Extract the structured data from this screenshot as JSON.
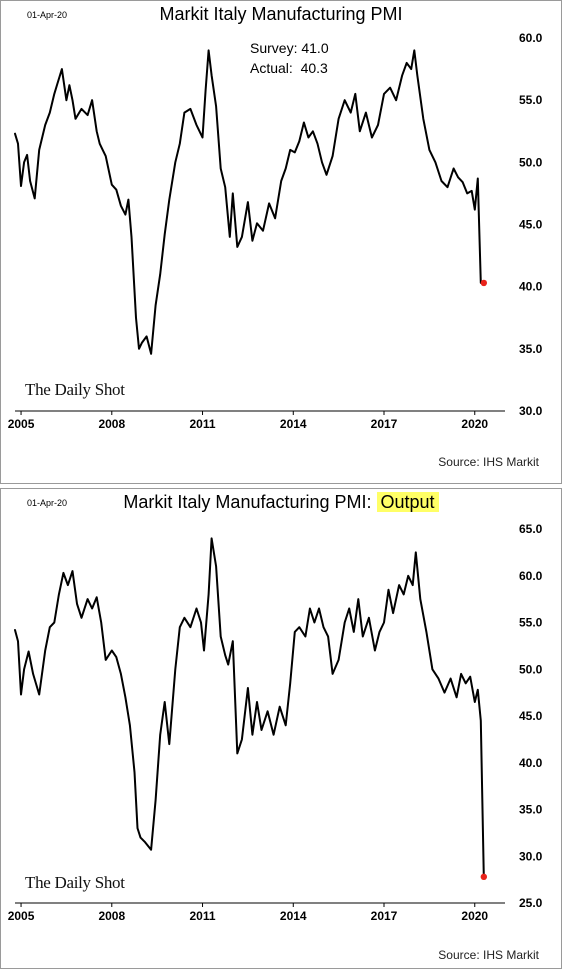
{
  "chart_data": [
    {
      "type": "line",
      "title": "Markit Italy Manufacturing PMI",
      "date_label": "01-Apr-20",
      "annotation": {
        "survey": "Survey: 41.0",
        "actual": "Actual:  40.3"
      },
      "source": "Source: IHS Markit",
      "watermark": "The Daily Shot",
      "ylim": [
        30,
        60
      ],
      "yticks": [
        "30.0",
        "35.0",
        "40.0",
        "45.0",
        "50.0",
        "55.0",
        "60.0"
      ],
      "xlim": [
        2004.8,
        2021.0
      ],
      "xticks": [
        "2005",
        "2008",
        "2011",
        "2014",
        "2017",
        "2020"
      ],
      "grid": false,
      "marker_color": "#e8231b",
      "line_color": "#000000",
      "series": [
        {
          "x": [
            2004.8,
            2004.9,
            2005.0,
            2005.1,
            2005.2,
            2005.3,
            2005.45,
            2005.6,
            2005.8,
            2005.95,
            2006.1,
            2006.2,
            2006.35,
            2006.5,
            2006.6,
            2006.7,
            2006.8,
            2007.0,
            2007.2,
            2007.35,
            2007.5,
            2007.6,
            2007.7,
            2007.8,
            2008.0,
            2008.15,
            2008.3,
            2008.45,
            2008.55,
            2008.65,
            2008.8,
            2008.9,
            2009.0,
            2009.15,
            2009.3,
            2009.45,
            2009.6,
            2009.75,
            2009.9,
            2010.1,
            2010.25,
            2010.4,
            2010.6,
            2010.8,
            2011.0,
            2011.1,
            2011.2,
            2011.3,
            2011.45,
            2011.6,
            2011.75,
            2011.9,
            2012.0,
            2012.15,
            2012.3,
            2012.5,
            2012.65,
            2012.8,
            2013.0,
            2013.2,
            2013.4,
            2013.6,
            2013.75,
            2013.9,
            2014.05,
            2014.2,
            2014.35,
            2014.5,
            2014.65,
            2014.8,
            2014.95,
            2015.1,
            2015.3,
            2015.5,
            2015.7,
            2015.9,
            2016.05,
            2016.2,
            2016.4,
            2016.6,
            2016.8,
            2017.0,
            2017.2,
            2017.4,
            2017.6,
            2017.75,
            2017.9,
            2018.0,
            2018.1,
            2018.3,
            2018.5,
            2018.7,
            2018.9,
            2019.1,
            2019.3,
            2019.45,
            2019.6,
            2019.75,
            2019.9,
            2020.0,
            2020.1,
            2020.2,
            2020.3
          ],
          "y": [
            52.3,
            51.5,
            48.1,
            50.0,
            50.6,
            48.5,
            47.1,
            51.0,
            53.0,
            54.0,
            55.5,
            56.3,
            57.5,
            55.0,
            56.2,
            55.0,
            53.5,
            54.3,
            53.8,
            55.0,
            52.5,
            51.5,
            51.0,
            50.5,
            48.2,
            47.8,
            46.5,
            45.8,
            47.0,
            44.0,
            37.5,
            35.0,
            35.5,
            36.0,
            34.6,
            38.5,
            41.0,
            44.2,
            47.0,
            50.0,
            51.5,
            54.0,
            54.3,
            53.0,
            52.0,
            55.8,
            59.0,
            57.0,
            54.5,
            49.5,
            48.0,
            44.0,
            47.5,
            43.2,
            44.0,
            46.8,
            43.7,
            45.1,
            44.5,
            46.7,
            45.5,
            48.5,
            49.5,
            51.0,
            50.8,
            51.7,
            53.2,
            52.0,
            52.5,
            51.5,
            50.0,
            49.0,
            50.5,
            53.5,
            55.0,
            54.0,
            55.5,
            52.5,
            54.0,
            52.0,
            53.0,
            55.5,
            56.0,
            55.0,
            57.0,
            58.0,
            57.5,
            59.0,
            57.0,
            53.5,
            51.0,
            50.0,
            48.5,
            48.0,
            49.5,
            48.8,
            48.4,
            47.5,
            47.7,
            46.2,
            48.7,
            40.3,
            40.3
          ]
        }
      ]
    },
    {
      "type": "line",
      "title": "Markit Italy Manufacturing PMI: ",
      "title_highlight": "Output",
      "date_label": "01-Apr-20",
      "source": "Source: IHS Markit",
      "watermark": "The Daily Shot",
      "ylim": [
        25,
        65
      ],
      "yticks": [
        "25.0",
        "30.0",
        "35.0",
        "40.0",
        "45.0",
        "50.0",
        "55.0",
        "60.0",
        "65.0"
      ],
      "xlim": [
        2004.8,
        2021.0
      ],
      "xticks": [
        "2005",
        "2008",
        "2011",
        "2014",
        "2017",
        "2020"
      ],
      "grid": false,
      "marker_color": "#e8231b",
      "line_color": "#000000",
      "series": [
        {
          "x": [
            2004.8,
            2004.9,
            2005.0,
            2005.1,
            2005.25,
            2005.4,
            2005.6,
            2005.8,
            2005.95,
            2006.1,
            2006.25,
            2006.4,
            2006.55,
            2006.7,
            2006.85,
            2007.0,
            2007.2,
            2007.35,
            2007.5,
            2007.65,
            2007.8,
            2008.0,
            2008.15,
            2008.3,
            2008.45,
            2008.6,
            2008.75,
            2008.85,
            2008.95,
            2009.1,
            2009.3,
            2009.45,
            2009.6,
            2009.75,
            2009.9,
            2010.1,
            2010.25,
            2010.4,
            2010.6,
            2010.8,
            2010.95,
            2011.05,
            2011.2,
            2011.3,
            2011.45,
            2011.6,
            2011.75,
            2011.85,
            2012.0,
            2012.15,
            2012.3,
            2012.5,
            2012.65,
            2012.8,
            2012.95,
            2013.15,
            2013.35,
            2013.55,
            2013.75,
            2013.9,
            2014.05,
            2014.2,
            2014.4,
            2014.55,
            2014.7,
            2014.85,
            2015.0,
            2015.15,
            2015.3,
            2015.5,
            2015.7,
            2015.85,
            2016.0,
            2016.15,
            2016.3,
            2016.5,
            2016.7,
            2016.85,
            2017.0,
            2017.15,
            2017.3,
            2017.5,
            2017.65,
            2017.8,
            2017.95,
            2018.05,
            2018.2,
            2018.4,
            2018.6,
            2018.8,
            2019.0,
            2019.2,
            2019.4,
            2019.55,
            2019.7,
            2019.85,
            2020.0,
            2020.1,
            2020.2,
            2020.3
          ],
          "y": [
            54.2,
            53.0,
            47.3,
            50.0,
            51.9,
            49.5,
            47.3,
            52.0,
            54.5,
            55.0,
            58.0,
            60.3,
            59.0,
            60.5,
            57.0,
            55.5,
            57.5,
            56.5,
            57.7,
            55.0,
            51.0,
            52.0,
            51.3,
            49.5,
            47.0,
            44.0,
            39.0,
            33.0,
            32.0,
            31.5,
            30.7,
            36.0,
            43.0,
            46.5,
            42.0,
            50.0,
            54.5,
            55.5,
            54.5,
            56.5,
            55.0,
            52.0,
            58.0,
            64.0,
            61.0,
            53.5,
            51.5,
            50.5,
            53.0,
            41.0,
            42.5,
            48.0,
            43.0,
            46.5,
            43.5,
            45.5,
            43.0,
            46.0,
            44.0,
            48.5,
            54.0,
            54.5,
            53.5,
            56.5,
            55.0,
            56.5,
            54.5,
            53.5,
            49.5,
            51.0,
            55.0,
            56.5,
            54.0,
            57.5,
            53.5,
            55.5,
            52.0,
            54.0,
            55.0,
            58.5,
            56.0,
            59.0,
            58.0,
            60.0,
            59.0,
            62.5,
            57.5,
            54.0,
            50.0,
            49.0,
            47.5,
            49.0,
            47.0,
            49.5,
            48.5,
            49.2,
            46.5,
            47.8,
            44.5,
            27.8
          ]
        }
      ]
    }
  ]
}
